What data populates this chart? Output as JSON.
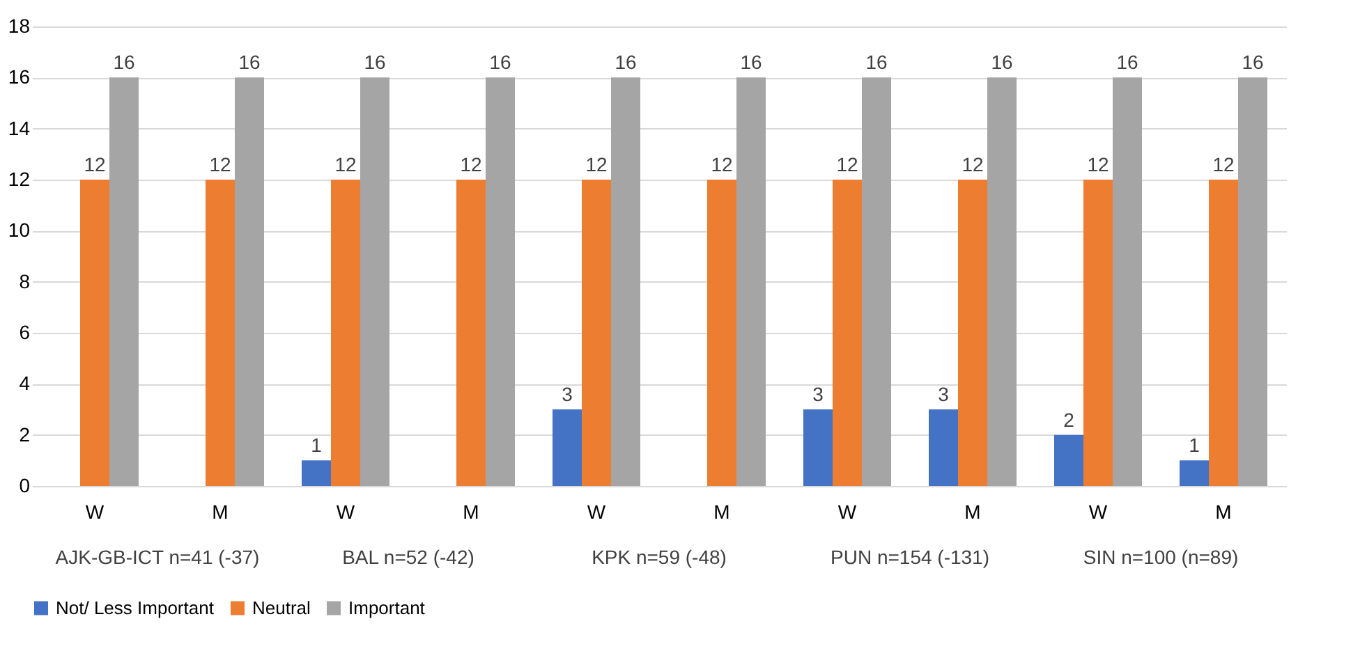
{
  "chart_data": {
    "type": "bar",
    "categories": [
      "W",
      "M",
      "W",
      "M",
      "W",
      "M",
      "W",
      "M",
      "W",
      "M"
    ],
    "series": [
      {
        "name": "Not/ Less Important",
        "color": "#4472c4",
        "values": [
          null,
          null,
          1,
          null,
          3,
          null,
          3,
          3,
          2,
          1
        ]
      },
      {
        "name": "Neutral",
        "color": "#ed7d31",
        "values": [
          12,
          12,
          12,
          12,
          12,
          12,
          12,
          12,
          12,
          12
        ]
      },
      {
        "name": "Important",
        "color": "#a5a5a5",
        "values": [
          16,
          16,
          16,
          16,
          16,
          16,
          16,
          16,
          16,
          16
        ]
      }
    ],
    "annotations": [
      "AJK-GB-ICT n=41 (-37)",
      "BAL n=52 (-42)",
      "KPK n=59 (-48)",
      "PUN n=154 (-131)",
      "SIN n=100 (n=89)"
    ],
    "ylim": [
      0,
      18
    ],
    "yticks": [
      0,
      2,
      4,
      6,
      8,
      10,
      12,
      14,
      16,
      18
    ],
    "grid": "y",
    "legend": "bottom",
    "data_labels": true
  }
}
